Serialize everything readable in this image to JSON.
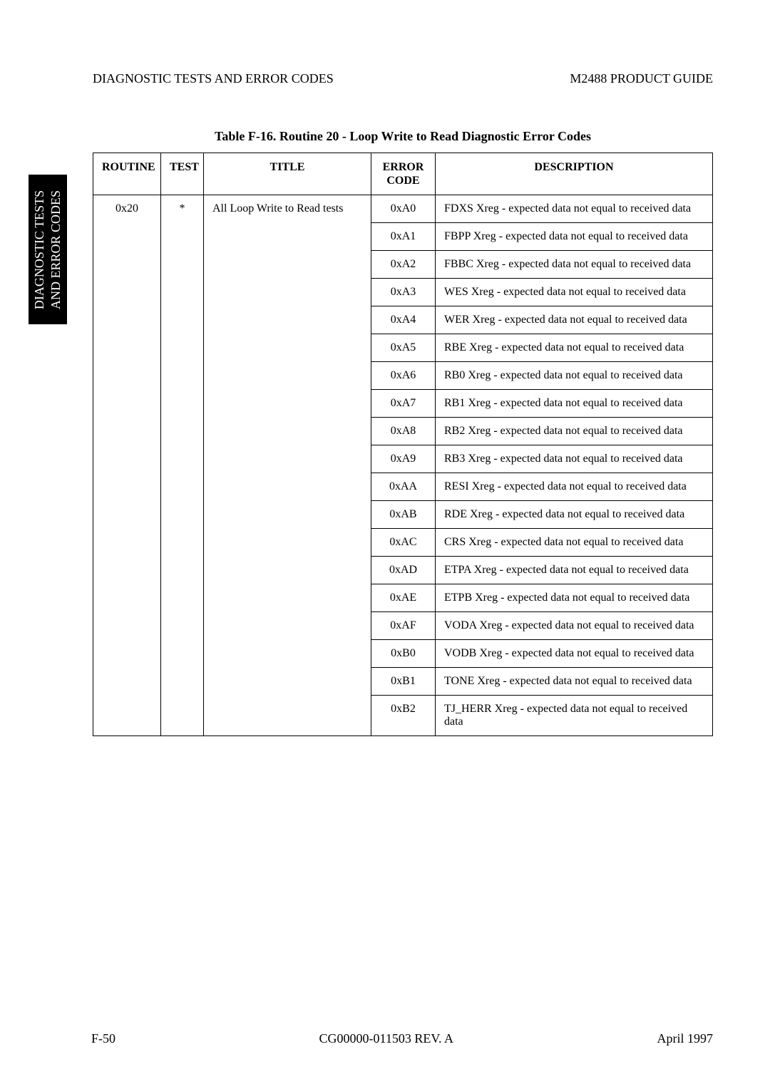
{
  "header": {
    "left": "DIAGNOSTIC TESTS AND ERROR CODES",
    "right": "M2488 PRODUCT GUIDE"
  },
  "side_tab": {
    "line1": "DIAGNOSTIC TESTS",
    "line2": "AND ERROR CODES"
  },
  "table": {
    "caption": "Table F-16.   Routine 20 - Loop Write to Read Diagnostic Error Codes",
    "columns": {
      "routine": "ROUTINE",
      "test": "TEST",
      "title": "TITLE",
      "error_code_l1": "ERROR",
      "error_code_l2": "CODE",
      "description": "DESCRIPTION"
    },
    "routine_value": "0x20",
    "test_value": "*",
    "title_value": "All Loop Write to Read tests",
    "rows": [
      {
        "code": "0xA0",
        "desc": "FDXS Xreg - expected data not equal to received data"
      },
      {
        "code": "0xA1",
        "desc": "FBPP Xreg - expected data not equal to received data"
      },
      {
        "code": "0xA2",
        "desc": "FBBC Xreg - expected data not equal to received data"
      },
      {
        "code": "0xA3",
        "desc": "WES Xreg - expected data not equal to received data"
      },
      {
        "code": "0xA4",
        "desc": "WER Xreg - expected data not equal to received data"
      },
      {
        "code": "0xA5",
        "desc": "RBE Xreg - expected data not equal to received data"
      },
      {
        "code": "0xA6",
        "desc": "RB0 Xreg - expected data not equal to received data"
      },
      {
        "code": "0xA7",
        "desc": "RB1 Xreg - expected data not equal to received data"
      },
      {
        "code": "0xA8",
        "desc": "RB2 Xreg - expected data not equal to received data"
      },
      {
        "code": "0xA9",
        "desc": "RB3 Xreg - expected data not equal to received data"
      },
      {
        "code": "0xAA",
        "desc": "RESI Xreg - expected data not equal to received data"
      },
      {
        "code": "0xAB",
        "desc": "RDE Xreg - expected data not equal to received data"
      },
      {
        "code": "0xAC",
        "desc": "CRS Xreg - expected data not equal to received data"
      },
      {
        "code": "0xAD",
        "desc": "ETPA Xreg - expected data not equal to received data"
      },
      {
        "code": "0xAE",
        "desc": "ETPB Xreg - expected data not equal to received data"
      },
      {
        "code": "0xAF",
        "desc": "VODA Xreg - expected data not equal to received data"
      },
      {
        "code": "0xB0",
        "desc": "VODB Xreg - expected data not equal to received data"
      },
      {
        "code": "0xB1",
        "desc": "TONE Xreg - expected data not equal to received data"
      },
      {
        "code": "0xB2",
        "desc": "TJ_HERR Xreg - expected data not equal to received data"
      }
    ]
  },
  "footer": {
    "left": "F-50",
    "center": "CG00000-011503 REV. A",
    "right": "April 1997"
  }
}
